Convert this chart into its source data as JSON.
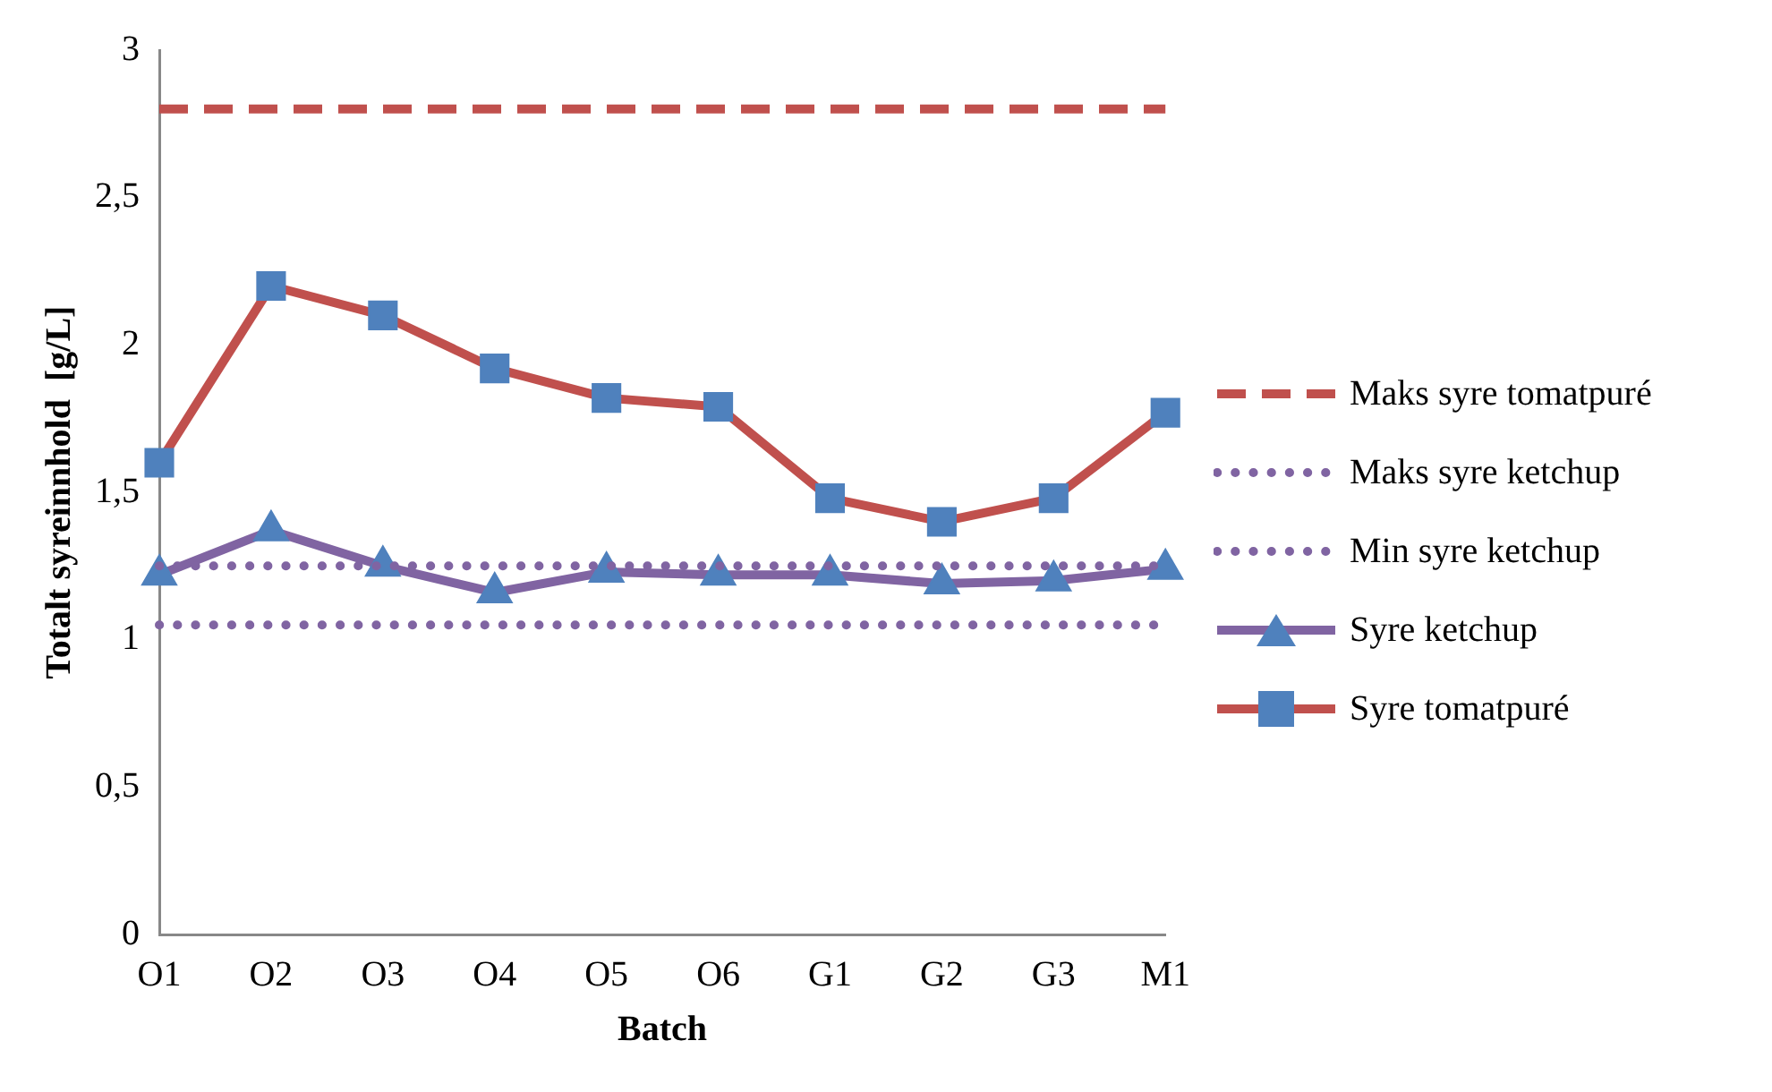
{
  "chart_data": {
    "type": "line",
    "xlabel": "Batch",
    "ylabel": "Totalt syreinnhold  [g/L]",
    "categories": [
      "O1",
      "O2",
      "O3",
      "O4",
      "O5",
      "O6",
      "G1",
      "G2",
      "G3",
      "M1"
    ],
    "ylim": [
      0,
      3
    ],
    "yticks": [
      {
        "value": 0,
        "label": "0"
      },
      {
        "value": 0.5,
        "label": "0,5"
      },
      {
        "value": 1,
        "label": "1"
      },
      {
        "value": 1.5,
        "label": "1,5"
      },
      {
        "value": 2,
        "label": "2"
      },
      {
        "value": 2.5,
        "label": "2,5"
      },
      {
        "value": 3,
        "label": "3"
      }
    ],
    "grid": false,
    "legend": "right",
    "series": [
      {
        "name": "Maks syre tomatpuré",
        "color": "#c0504d",
        "line_style": "dashed",
        "marker": "none",
        "values": [
          2.8,
          2.8,
          2.8,
          2.8,
          2.8,
          2.8,
          2.8,
          2.8,
          2.8,
          2.8
        ]
      },
      {
        "name": "Maks syre ketchup",
        "color": "#8064a2",
        "line_style": "dotted",
        "marker": "none",
        "values": [
          1.25,
          1.25,
          1.25,
          1.25,
          1.25,
          1.25,
          1.25,
          1.25,
          1.25,
          1.25
        ]
      },
      {
        "name": "Min syre ketchup",
        "color": "#8064a2",
        "line_style": "dotted",
        "marker": "none",
        "values": [
          1.05,
          1.05,
          1.05,
          1.05,
          1.05,
          1.05,
          1.05,
          1.05,
          1.05,
          1.05
        ]
      },
      {
        "name": "Syre ketchup",
        "color": "#8064a2",
        "line_style": "solid",
        "marker": "triangle",
        "values": [
          1.22,
          1.37,
          1.25,
          1.16,
          1.23,
          1.22,
          1.22,
          1.19,
          1.2,
          1.24
        ]
      },
      {
        "name": "Syre tomatpuré",
        "color": "#c0504d",
        "line_style": "solid",
        "marker": "square",
        "values": [
          1.6,
          2.2,
          2.1,
          1.92,
          1.82,
          1.79,
          1.48,
          1.4,
          1.48,
          1.77
        ]
      }
    ]
  }
}
